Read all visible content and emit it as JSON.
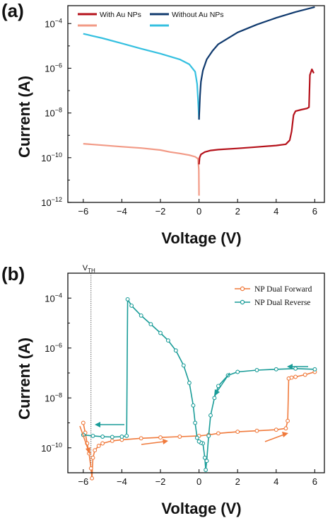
{
  "chart_data": [
    {
      "type": "line",
      "panel_label": "(a)",
      "xlabel": "Voltage (V)",
      "ylabel": "Current (A)",
      "xlim": [
        -6.8,
        6.5
      ],
      "ylim_log10": [
        -12,
        -3.2
      ],
      "yscale": "log",
      "x_ticks": [
        -6,
        -4,
        -2,
        0,
        2,
        4,
        6
      ],
      "x_tick_labels": [
        "−6",
        "−4",
        "−2",
        "0",
        "2",
        "4",
        "6"
      ],
      "y_tick_exponents": [
        -12,
        -10,
        -8,
        -6,
        -4
      ],
      "y_tick_base": "10",
      "legend_placement": "top",
      "series": [
        {
          "name": "With Au NPs",
          "color": "#b5121b",
          "legend_swatch": "#f29a86",
          "segments": [
            {
              "color": "#f29a86",
              "points": [
                [
                  -6.0,
                  4.2e-10
                ],
                [
                  -5.0,
                  3.6e-10
                ],
                [
                  -4.0,
                  3.1e-10
                ],
                [
                  -3.0,
                  2.7e-10
                ],
                [
                  -2.0,
                  2.2e-10
                ],
                [
                  -1.5,
                  1.8e-10
                ],
                [
                  -1.0,
                  1.55e-10
                ],
                [
                  -0.5,
                  1.3e-10
                ],
                [
                  -0.2,
                  1.1e-10
                ],
                [
                  -0.05,
                  9e-11
                ],
                [
                  -0.01,
                  3e-11
                ],
                [
                  0.0,
                  2e-12
                ]
              ]
            },
            {
              "color": "#b5121b",
              "points": [
                [
                  0.0,
                  5e-11
                ],
                [
                  0.03,
                  1e-10
                ],
                [
                  0.1,
                  1.4e-10
                ],
                [
                  0.3,
                  1.8e-10
                ],
                [
                  0.6,
                  2.1e-10
                ],
                [
                  1.0,
                  2.3e-10
                ],
                [
                  2.0,
                  2.6e-10
                ],
                [
                  3.0,
                  3e-10
                ],
                [
                  4.0,
                  3.5e-10
                ],
                [
                  4.5,
                  4e-10
                ],
                [
                  4.7,
                  6e-10
                ],
                [
                  4.8,
                  1.5e-09
                ],
                [
                  4.9,
                  8e-09
                ],
                [
                  5.0,
                  1.2e-08
                ],
                [
                  5.3,
                  1.4e-08
                ],
                [
                  5.6,
                  1.6e-08
                ],
                [
                  5.7,
                  1.8e-08
                ],
                [
                  5.75,
                  5e-07
                ],
                [
                  5.85,
                  9e-07
                ],
                [
                  5.95,
                  6e-07
                ]
              ]
            }
          ]
        },
        {
          "name": "Without Au NPs",
          "color": "#103a6e",
          "legend_swatch": "#35c0e0",
          "segments": [
            {
              "color": "#35c0e0",
              "points": [
                [
                  -6.0,
                  3.5e-05
                ],
                [
                  -5.0,
                  2.2e-05
                ],
                [
                  -4.0,
                  1.3e-05
                ],
                [
                  -3.0,
                  7.5e-06
                ],
                [
                  -2.0,
                  4.5e-06
                ],
                [
                  -1.0,
                  2.5e-06
                ],
                [
                  -0.5,
                  1.5e-06
                ],
                [
                  -0.2,
                  7e-07
                ],
                [
                  -0.1,
                  2e-07
                ],
                [
                  -0.05,
                  4e-08
                ],
                [
                  0.0,
                  5e-09
                ]
              ]
            },
            {
              "color": "#103a6e",
              "points": [
                [
                  0.0,
                  5e-09
                ],
                [
                  0.05,
                  6e-08
                ],
                [
                  0.1,
                  2.5e-07
                ],
                [
                  0.2,
                  8e-07
                ],
                [
                  0.4,
                  2.5e-06
                ],
                [
                  0.7,
                  6e-06
                ],
                [
                  1.0,
                  1.2e-05
                ],
                [
                  2.0,
                  4e-05
                ],
                [
                  3.0,
                  9e-05
                ],
                [
                  4.0,
                  0.00018
                ],
                [
                  5.0,
                  0.00033
                ],
                [
                  6.0,
                  0.00055
                ]
              ]
            }
          ]
        }
      ]
    },
    {
      "type": "line",
      "panel_label": "(b)",
      "xlabel": "Voltage (V)",
      "ylabel": "Current (A)",
      "xlim": [
        -6.8,
        6.5
      ],
      "ylim_log10": [
        -11,
        -3.0
      ],
      "yscale": "log",
      "x_ticks": [
        -6,
        -4,
        -2,
        0,
        2,
        4,
        6
      ],
      "x_tick_labels": [
        "−6",
        "−4",
        "−2",
        "0",
        "2",
        "4",
        "6"
      ],
      "y_tick_exponents": [
        -10,
        -8,
        -6,
        -4
      ],
      "y_tick_base": "10",
      "legend_placement": "top-right",
      "threshold_label": "V",
      "threshold_subscript": "TH",
      "threshold_x": -5.6,
      "series": [
        {
          "name": "NP Dual Forward",
          "color": "#f07a3c",
          "points": [
            [
              -6.0,
              1e-09
            ],
            [
              -5.9,
              4e-10
            ],
            [
              -5.8,
              1.5e-10
            ],
            [
              -5.7,
              6e-11
            ],
            [
              -5.6,
              1.5e-11
            ],
            [
              -5.55,
              6e-12
            ],
            [
              -5.5,
              4e-11
            ],
            [
              -5.4,
              8e-11
            ],
            [
              -5.2,
              1.2e-10
            ],
            [
              -5.0,
              1.5e-10
            ],
            [
              -4.5,
              1.9e-10
            ],
            [
              -4.0,
              2.1e-10
            ],
            [
              -3.0,
              2.4e-10
            ],
            [
              -2.0,
              2.6e-10
            ],
            [
              -1.0,
              2.8e-10
            ],
            [
              0.0,
              3e-10
            ],
            [
              0.5,
              3.3e-10
            ],
            [
              1.0,
              3.8e-10
            ],
            [
              2.0,
              4.4e-10
            ],
            [
              3.0,
              4.8e-10
            ],
            [
              4.0,
              5.3e-10
            ],
            [
              4.5,
              6e-10
            ],
            [
              4.6,
              1.2e-09
            ],
            [
              4.65,
              6e-08
            ],
            [
              4.8,
              6.5e-08
            ],
            [
              5.0,
              7e-08
            ],
            [
              5.5,
              8.5e-08
            ],
            [
              6.0,
              1.1e-07
            ]
          ]
        },
        {
          "name": "NP Dual Reverse",
          "color": "#1a9c98",
          "points": [
            [
              6.0,
              1.4e-07
            ],
            [
              5.0,
              1.5e-07
            ],
            [
              4.0,
              1.4e-07
            ],
            [
              3.0,
              1.3e-07
            ],
            [
              2.0,
              1.1e-07
            ],
            [
              1.5,
              8e-08
            ],
            [
              1.0,
              3e-08
            ],
            [
              0.8,
              1e-08
            ],
            [
              0.6,
              2e-09
            ],
            [
              0.5,
              3e-10
            ],
            [
              0.4,
              3e-11
            ],
            [
              0.35,
              1.3e-11
            ],
            [
              0.3,
              4e-11
            ],
            [
              0.2,
              1.5e-10
            ],
            [
              0.1,
              1.6e-10
            ],
            [
              0.0,
              1.8e-10
            ],
            [
              -0.1,
              2.5e-10
            ],
            [
              -0.2,
              1e-09
            ],
            [
              -0.3,
              5e-09
            ],
            [
              -0.5,
              4e-08
            ],
            [
              -0.8,
              2e-07
            ],
            [
              -1.2,
              8e-07
            ],
            [
              -1.6,
              2e-06
            ],
            [
              -2.0,
              4e-06
            ],
            [
              -2.5,
              9e-06
            ],
            [
              -3.0,
              2e-05
            ],
            [
              -3.5,
              5e-05
            ],
            [
              -3.7,
              9e-05
            ],
            [
              -3.75,
              3e-10
            ],
            [
              -4.0,
              2.8e-10
            ],
            [
              -4.5,
              2.7e-10
            ],
            [
              -5.0,
              2.8e-10
            ],
            [
              -5.5,
              3e-10
            ],
            [
              -6.0,
              3.3e-10
            ]
          ]
        }
      ]
    }
  ]
}
